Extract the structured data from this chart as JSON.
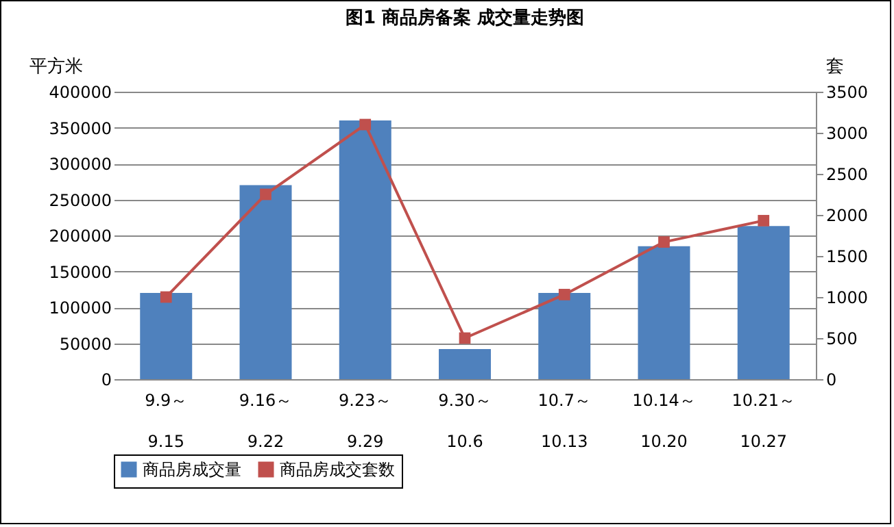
{
  "chart_data": {
    "type": "bar",
    "title": "图1   商品房备案 成交量走势图",
    "categories": [
      "9.9～\n9.15",
      "9.16～\n9.22",
      "9.23～\n9.29",
      "9.30～\n10.6",
      "10.7～\n10.13",
      "10.14～\n10.20",
      "10.21～\n10.27"
    ],
    "series": [
      {
        "name": "商品房成交量",
        "color": "#4f81bd",
        "values": [
          120000,
          270000,
          360000,
          42000,
          120000,
          185000,
          213000
        ]
      },
      {
        "name": "商品房成交套数",
        "type": "line",
        "axis": "y2",
        "color": "#c0504d",
        "values": [
          1000,
          2250,
          3100,
          500,
          1030,
          1670,
          1930
        ]
      }
    ],
    "ylabel": "平方米",
    "y2label": "套",
    "ylim": [
      0,
      400000
    ],
    "yticks": [
      0,
      50000,
      100000,
      150000,
      200000,
      250000,
      300000,
      350000,
      400000
    ],
    "y2lim": [
      0,
      3500
    ],
    "y2ticks": [
      0,
      500,
      1000,
      1500,
      2000,
      2500,
      3000,
      3500
    ],
    "grid": "y",
    "legend": "bottom",
    "marker": "square"
  }
}
